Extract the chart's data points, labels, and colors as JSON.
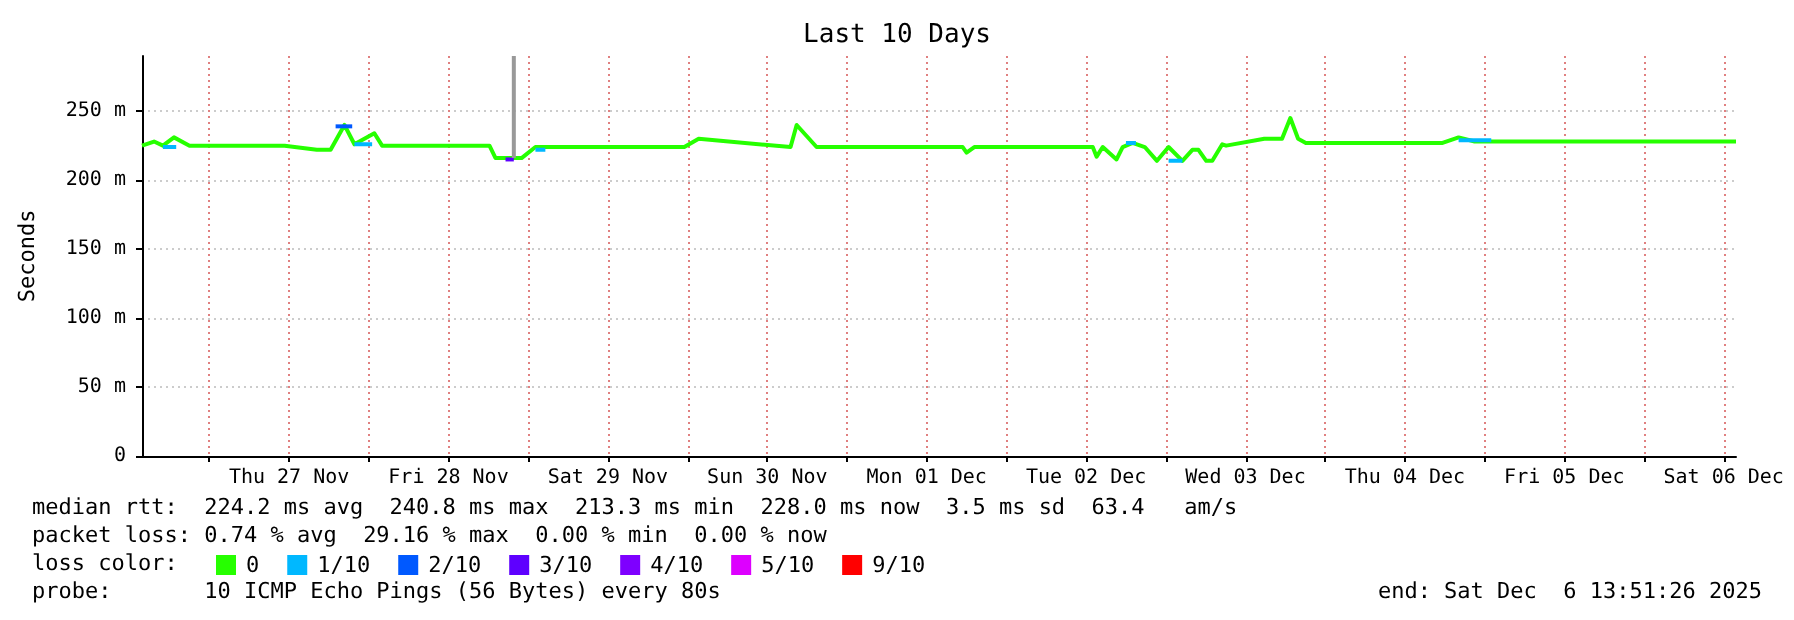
{
  "chart_data": {
    "type": "line",
    "title": "Last 10 Days",
    "ylabel": "Seconds",
    "legend_title": "loss color:",
    "annotations": [
      "median rtt:  224.2 ms avg  240.8 ms max  213.3 ms min  228.0 ms now  3.5 ms sd  63.4   am/s",
      "packet loss: 0.74 % avg  29.16 % max  0.00 % min  0.00 % now",
      "probe:       10 ICMP Echo Pings (56 Bytes) every 80s",
      "end: Sat Dec  6 13:51:26 2025"
    ],
    "xlim": [
      "2025-11-26T13:51",
      "2025-12-06T13:51"
    ],
    "xticks": [
      {
        "value": "2025-11-27T00:00",
        "label": null
      },
      {
        "value": "2025-11-27T12:00",
        "label": "Thu 27 Nov"
      },
      {
        "value": "2025-11-28T00:00",
        "label": null
      },
      {
        "value": "2025-11-28T12:00",
        "label": "Fri 28 Nov"
      },
      {
        "value": "2025-11-29T00:00",
        "label": null
      },
      {
        "value": "2025-11-29T12:00",
        "label": "Sat 29 Nov"
      },
      {
        "value": "2025-11-30T00:00",
        "label": null
      },
      {
        "value": "2025-11-30T12:00",
        "label": "Sun 30 Nov"
      },
      {
        "value": "2025-12-01T00:00",
        "label": null
      },
      {
        "value": "2025-12-01T12:00",
        "label": "Mon 01 Dec"
      },
      {
        "value": "2025-12-02T00:00",
        "label": null
      },
      {
        "value": "2025-12-02T12:00",
        "label": "Tue 02 Dec"
      },
      {
        "value": "2025-12-03T00:00",
        "label": null
      },
      {
        "value": "2025-12-03T12:00",
        "label": "Wed 03 Dec"
      },
      {
        "value": "2025-12-04T00:00",
        "label": null
      },
      {
        "value": "2025-12-04T12:00",
        "label": "Thu 04 Dec"
      },
      {
        "value": "2025-12-05T00:00",
        "label": null
      },
      {
        "value": "2025-12-05T12:00",
        "label": "Fri 05 Dec"
      },
      {
        "value": "2025-12-06T00:00",
        "label": null
      },
      {
        "value": "2025-12-06T12:00",
        "label": "Sat 06 Dec"
      }
    ],
    "ylim": [
      0,
      290
    ],
    "yticks": [
      0,
      {
        "value": 50,
        "label": "50 m"
      },
      {
        "value": 100,
        "label": "100 m"
      },
      {
        "value": 150,
        "label": "150 m"
      },
      {
        "value": 200,
        "label": "200 m"
      },
      {
        "value": 250,
        "label": "250 m"
      }
    ],
    "grid": true,
    "legend": "bottom left",
    "marker": "none",
    "line_style": "solid",
    "series": [
      {
        "name": "0",
        "color": "#26ff00",
        "x": [
          "2025-11-26T13:51",
          "2025-11-26T15:40",
          "2025-11-26T17:00",
          "2025-11-26T18:40",
          "2025-11-26T21:00",
          "2025-11-27T11:20",
          "2025-11-27T16:10",
          "2025-11-27T18:15",
          "2025-11-27T20:20",
          "2025-11-27T21:50",
          "2025-11-28T00:50",
          "2025-11-28T02:00",
          "2025-11-28T18:10",
          "2025-11-28T19:05",
          "2025-11-28T23:00",
          "2025-11-29T01:05",
          "2025-11-29T02:35",
          "2025-11-29T23:30",
          "2025-11-30T01:40",
          "2025-11-30T15:30",
          "2025-11-30T16:25",
          "2025-11-30T17:55",
          "2025-11-30T19:25",
          "2025-12-01T17:25",
          "2025-12-01T18:00",
          "2025-12-01T19:10",
          "2025-12-02T13:00",
          "2025-12-02T13:35",
          "2025-12-02T14:30",
          "2025-12-02T16:35",
          "2025-12-02T17:30",
          "2025-12-02T19:00",
          "2025-12-02T20:50",
          "2025-12-02T22:40",
          "2025-12-03T00:25",
          "2025-12-03T02:30",
          "2025-12-03T04:00",
          "2025-12-03T04:55",
          "2025-12-03T06:05",
          "2025-12-03T07:00",
          "2025-12-03T08:30",
          "2025-12-03T09:05",
          "2025-12-03T14:50",
          "2025-12-03T17:30",
          "2025-12-03T18:45",
          "2025-12-03T19:55",
          "2025-12-03T21:05",
          "2025-12-04T17:40",
          "2025-12-04T20:05",
          "2025-12-04T22:30",
          "2025-12-06T13:51"
        ],
        "values": [
          225,
          228,
          225,
          231,
          225,
          225,
          222,
          222,
          240,
          226,
          234,
          225,
          225,
          216,
          216,
          224,
          224,
          224,
          230,
          224,
          240,
          232,
          224,
          224,
          220,
          224,
          224,
          217,
          224,
          215,
          224,
          227,
          224,
          214,
          224,
          214,
          222,
          222,
          214,
          214,
          226,
          225,
          230,
          230,
          245,
          230,
          227,
          227,
          231,
          228,
          228
        ]
      },
      {
        "name": "1/10",
        "color": "#00b8ff",
        "x": [
          "2025-11-26T17:00",
          "2025-11-26T19:00",
          null,
          "2025-11-27T21:50",
          "2025-11-28T00:30",
          null,
          "2025-11-29T01:05",
          "2025-11-29T02:35",
          null,
          "2025-12-02T18:00",
          "2025-12-02T19:30",
          null,
          "2025-12-03T00:25",
          "2025-12-03T02:30",
          null,
          "2025-12-04T20:05",
          "2025-12-05T01:00"
        ],
        "values": [
          224,
          224,
          null,
          226,
          226,
          null,
          222,
          222,
          null,
          227,
          227,
          null,
          214,
          214,
          null,
          229,
          229
        ]
      },
      {
        "name": "2/10",
        "color": "#0059ff",
        "x": [
          "2025-11-27T19:00",
          "2025-11-27T21:30"
        ],
        "values": [
          239,
          239
        ]
      },
      {
        "name": "3/10",
        "color": "#5e00ff",
        "x": [
          "2025-11-28T20:35",
          "2025-11-28T21:50"
        ],
        "values": [
          215,
          215
        ]
      },
      {
        "name": "4/10",
        "color": "#7e00ff"
      },
      {
        "name": "5/10",
        "color": "#dd00ff"
      },
      {
        "name": "9/10",
        "color": "#ff0000"
      },
      {
        "color": "#999999",
        "x": [
          "2025-11-28T21:50",
          "2025-11-28T21:50"
        ],
        "values": [
          216,
          290
        ]
      }
    ]
  }
}
